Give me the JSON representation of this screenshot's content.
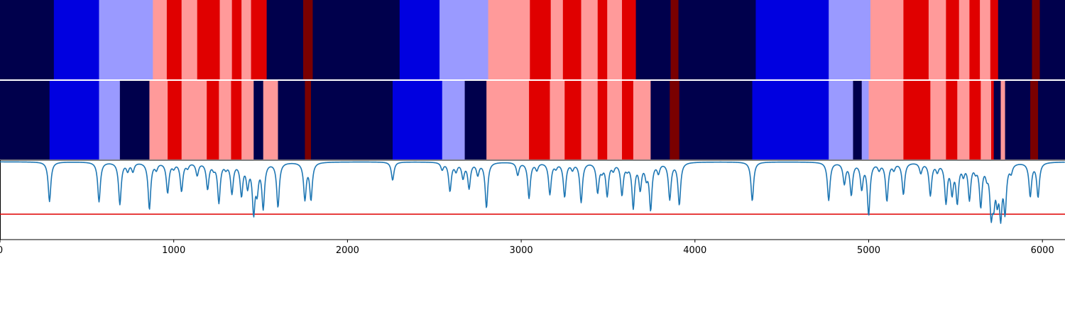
{
  "chart_data": [
    {
      "type": "heatmap",
      "title": "",
      "xlim": [
        0,
        6130
      ],
      "palette": {
        "0": "#00004c",
        "1": "#0000e0",
        "2": "#9a9aff",
        "3": "#ff9a9a",
        "4": "#e00000",
        "5": "#7a0000"
      },
      "segments": [
        [
          0,
          310,
          0
        ],
        [
          310,
          570,
          1
        ],
        [
          570,
          880,
          2
        ],
        [
          880,
          960,
          3
        ],
        [
          960,
          1045,
          4
        ],
        [
          1045,
          1135,
          3
        ],
        [
          1135,
          1265,
          4
        ],
        [
          1265,
          1335,
          3
        ],
        [
          1335,
          1390,
          4
        ],
        [
          1390,
          1445,
          3
        ],
        [
          1445,
          1535,
          4
        ],
        [
          1535,
          1745,
          0
        ],
        [
          1745,
          1800,
          5
        ],
        [
          1800,
          2300,
          0
        ],
        [
          2300,
          2530,
          1
        ],
        [
          2530,
          2810,
          2
        ],
        [
          2810,
          3050,
          3
        ],
        [
          3050,
          3170,
          4
        ],
        [
          3170,
          3240,
          3
        ],
        [
          3240,
          3345,
          4
        ],
        [
          3345,
          3440,
          3
        ],
        [
          3440,
          3495,
          4
        ],
        [
          3495,
          3580,
          3
        ],
        [
          3580,
          3660,
          4
        ],
        [
          3660,
          3860,
          0
        ],
        [
          3860,
          3905,
          5
        ],
        [
          3905,
          4350,
          0
        ],
        [
          4350,
          4770,
          1
        ],
        [
          4770,
          5010,
          2
        ],
        [
          5010,
          5200,
          3
        ],
        [
          5200,
          5345,
          4
        ],
        [
          5345,
          5445,
          3
        ],
        [
          5445,
          5520,
          4
        ],
        [
          5520,
          5580,
          3
        ],
        [
          5580,
          5640,
          4
        ],
        [
          5640,
          5700,
          3
        ],
        [
          5700,
          5745,
          4
        ],
        [
          5745,
          5940,
          0
        ],
        [
          5940,
          5985,
          5
        ],
        [
          5985,
          6130,
          0
        ]
      ]
    },
    {
      "type": "heatmap",
      "title": "",
      "xlim": [
        0,
        6130
      ],
      "segments": [
        [
          0,
          285,
          0
        ],
        [
          285,
          570,
          1
        ],
        [
          570,
          690,
          2
        ],
        [
          690,
          860,
          0
        ],
        [
          860,
          965,
          3
        ],
        [
          965,
          1045,
          4
        ],
        [
          1045,
          1190,
          3
        ],
        [
          1190,
          1260,
          4
        ],
        [
          1260,
          1330,
          3
        ],
        [
          1330,
          1390,
          4
        ],
        [
          1390,
          1460,
          3
        ],
        [
          1460,
          1515,
          0
        ],
        [
          1515,
          1600,
          3
        ],
        [
          1600,
          1755,
          0
        ],
        [
          1755,
          1790,
          5
        ],
        [
          1790,
          2260,
          0
        ],
        [
          2260,
          2545,
          1
        ],
        [
          2545,
          2675,
          2
        ],
        [
          2675,
          2800,
          0
        ],
        [
          2800,
          3045,
          3
        ],
        [
          3045,
          3165,
          4
        ],
        [
          3165,
          3250,
          3
        ],
        [
          3250,
          3345,
          4
        ],
        [
          3345,
          3440,
          3
        ],
        [
          3440,
          3495,
          4
        ],
        [
          3495,
          3580,
          3
        ],
        [
          3580,
          3645,
          4
        ],
        [
          3645,
          3745,
          3
        ],
        [
          3745,
          3855,
          0
        ],
        [
          3855,
          3910,
          5
        ],
        [
          3910,
          4330,
          0
        ],
        [
          4330,
          4770,
          1
        ],
        [
          4770,
          4910,
          2
        ],
        [
          4910,
          4960,
          0
        ],
        [
          4960,
          5000,
          2
        ],
        [
          5000,
          5200,
          3
        ],
        [
          5200,
          5355,
          4
        ],
        [
          5355,
          5445,
          3
        ],
        [
          5445,
          5510,
          4
        ],
        [
          5510,
          5580,
          3
        ],
        [
          5580,
          5645,
          4
        ],
        [
          5645,
          5705,
          3
        ],
        [
          5705,
          5720,
          4
        ],
        [
          5720,
          5760,
          0
        ],
        [
          5760,
          5785,
          3
        ],
        [
          5785,
          5930,
          0
        ],
        [
          5930,
          5975,
          5
        ],
        [
          5975,
          6130,
          0
        ]
      ]
    },
    {
      "type": "line",
      "title": "",
      "xlabel": "",
      "ylabel": "",
      "xlim": [
        0,
        6130
      ],
      "ylim": [
        0,
        1
      ],
      "x_ticks": [
        0,
        1000,
        2000,
        3000,
        4000,
        5000,
        6000
      ],
      "tick_labels": [
        "0",
        "1000",
        "2000",
        "3000",
        "4000",
        "5000",
        "6000"
      ],
      "threshold": {
        "value": 0.32,
        "color": "#e00000"
      },
      "series": [
        {
          "color": "#1f77b4",
          "baseline": 0.98,
          "dips": [
            [
              285,
              0.48
            ],
            [
              570,
              0.48
            ],
            [
              690,
              0.45
            ],
            [
              735,
              0.88
            ],
            [
              765,
              0.87
            ],
            [
              860,
              0.39
            ],
            [
              900,
              0.9
            ],
            [
              965,
              0.6
            ],
            [
              1000,
              0.92
            ],
            [
              1045,
              0.62
            ],
            [
              1080,
              0.92
            ],
            [
              1135,
              0.82
            ],
            [
              1195,
              0.65
            ],
            [
              1230,
              0.92
            ],
            [
              1260,
              0.48
            ],
            [
              1300,
              0.92
            ],
            [
              1335,
              0.6
            ],
            [
              1390,
              0.58
            ],
            [
              1425,
              0.7
            ],
            [
              1460,
              0.38
            ],
            [
              1480,
              0.67
            ],
            [
              1515,
              0.42
            ],
            [
              1600,
              0.42
            ],
            [
              1755,
              0.52
            ],
            [
              1790,
              0.52
            ],
            [
              2260,
              0.75
            ],
            [
              2545,
              0.89
            ],
            [
              2590,
              0.62
            ],
            [
              2625,
              0.88
            ],
            [
              2665,
              0.79
            ],
            [
              2700,
              0.66
            ],
            [
              2750,
              0.83
            ],
            [
              2800,
              0.41
            ],
            [
              2980,
              0.82
            ],
            [
              3045,
              0.53
            ],
            [
              3090,
              0.89
            ],
            [
              3165,
              0.58
            ],
            [
              3200,
              0.92
            ],
            [
              3250,
              0.55
            ],
            [
              3295,
              0.9
            ],
            [
              3345,
              0.48
            ],
            [
              3440,
              0.61
            ],
            [
              3465,
              0.9
            ],
            [
              3495,
              0.57
            ],
            [
              3530,
              0.9
            ],
            [
              3580,
              0.58
            ],
            [
              3610,
              0.92
            ],
            [
              3645,
              0.42
            ],
            [
              3685,
              0.66
            ],
            [
              3720,
              0.82
            ],
            [
              3745,
              0.4
            ],
            [
              3790,
              0.86
            ],
            [
              3855,
              0.52
            ],
            [
              3910,
              0.45
            ],
            [
              4330,
              0.49
            ],
            [
              4770,
              0.5
            ],
            [
              4860,
              0.72
            ],
            [
              4900,
              0.58
            ],
            [
              4960,
              0.66
            ],
            [
              5000,
              0.33
            ],
            [
              5060,
              0.9
            ],
            [
              5105,
              0.5
            ],
            [
              5145,
              0.9
            ],
            [
              5200,
              0.58
            ],
            [
              5300,
              0.85
            ],
            [
              5355,
              0.57
            ],
            [
              5395,
              0.88
            ],
            [
              5445,
              0.49
            ],
            [
              5480,
              0.62
            ],
            [
              5510,
              0.5
            ],
            [
              5545,
              0.85
            ],
            [
              5580,
              0.53
            ],
            [
              5615,
              0.9
            ],
            [
              5645,
              0.45
            ],
            [
              5680,
              0.86
            ],
            [
              5705,
              0.4
            ],
            [
              5720,
              0.6
            ],
            [
              5740,
              0.61
            ],
            [
              5760,
              0.38
            ],
            [
              5785,
              0.4
            ],
            [
              5820,
              0.88
            ],
            [
              5930,
              0.56
            ],
            [
              5975,
              0.55
            ]
          ]
        }
      ]
    }
  ]
}
